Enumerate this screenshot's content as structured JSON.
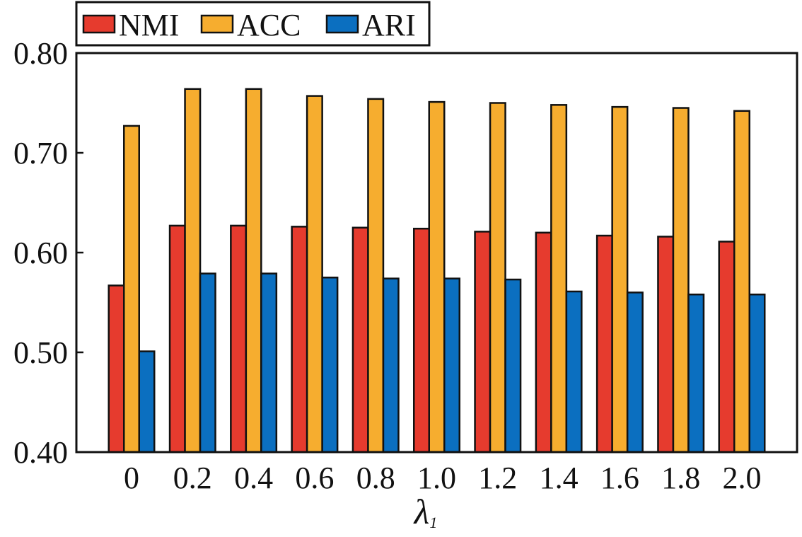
{
  "chart_data": {
    "type": "bar",
    "title": "",
    "xlabel": "λ",
    "xlabel_subscript": "1",
    "ylabel": "",
    "ylim": [
      0.4,
      0.8
    ],
    "yticks": [
      "0.40",
      "0.50",
      "0.60",
      "0.70",
      "0.80"
    ],
    "ytick_values": [
      0.4,
      0.5,
      0.6,
      0.7,
      0.8
    ],
    "categories": [
      "0",
      "0.2",
      "0.4",
      "0.6",
      "0.8",
      "1.0",
      "1.2",
      "1.4",
      "1.6",
      "1.8",
      "2.0"
    ],
    "grid": false,
    "legend_position": "top-left, above plot",
    "series": [
      {
        "name": "NMI",
        "color": "#e63b2e",
        "values": [
          0.567,
          0.627,
          0.627,
          0.626,
          0.625,
          0.624,
          0.621,
          0.62,
          0.617,
          0.616,
          0.611
        ]
      },
      {
        "name": "ACC",
        "color": "#f6ad2f",
        "values": [
          0.727,
          0.764,
          0.764,
          0.757,
          0.754,
          0.751,
          0.75,
          0.748,
          0.746,
          0.745,
          0.742
        ]
      },
      {
        "name": "ARI",
        "color": "#0b6fc0",
        "values": [
          0.501,
          0.579,
          0.579,
          0.575,
          0.574,
          0.574,
          0.573,
          0.561,
          0.56,
          0.558,
          0.558
        ]
      }
    ]
  }
}
